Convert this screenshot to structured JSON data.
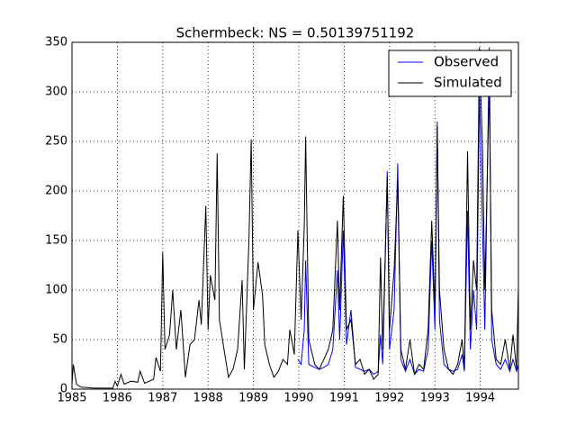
{
  "chart_data": {
    "type": "line",
    "title": "Schermbeck: NS = 0.50139751192",
    "x": [
      1985.0,
      1985.03,
      1985.1,
      1985.2,
      1985.5,
      1985.9,
      1985.95,
      1986.0,
      1986.08,
      1986.15,
      1986.3,
      1986.45,
      1986.5,
      1986.6,
      1986.8,
      1986.85,
      1986.95,
      1987.0,
      1987.05,
      1987.15,
      1987.22,
      1987.3,
      1987.4,
      1987.5,
      1987.6,
      1987.7,
      1987.8,
      1987.85,
      1987.95,
      1988.0,
      1988.05,
      1988.15,
      1988.2,
      1988.25,
      1988.35,
      1988.45,
      1988.55,
      1988.65,
      1988.75,
      1988.8,
      1988.9,
      1988.95,
      1989.0,
      1989.1,
      1989.2,
      1989.25,
      1989.35,
      1989.45,
      1989.55,
      1989.65,
      1989.75,
      1989.8,
      1989.9,
      1989.98,
      1990.05,
      1990.12,
      1990.15,
      1990.22,
      1990.35,
      1990.45,
      1990.55,
      1990.65,
      1990.75,
      1990.85,
      1990.9,
      1990.98,
      1991.05,
      1991.15,
      1991.25,
      1991.35,
      1991.45,
      1991.55,
      1991.65,
      1991.75,
      1991.8,
      1991.85,
      1991.95,
      1992.0,
      1992.1,
      1992.18,
      1992.25,
      1992.35,
      1992.45,
      1992.55,
      1992.65,
      1992.75,
      1992.85,
      1992.93,
      1993.0,
      1993.05,
      1993.1,
      1993.2,
      1993.3,
      1993.4,
      1993.5,
      1993.6,
      1993.65,
      1993.72,
      1993.78,
      1993.85,
      1993.92,
      1993.98,
      1994.05,
      1994.1,
      1994.2,
      1994.25,
      1994.35,
      1994.45,
      1994.55,
      1994.65,
      1994.72,
      1994.8,
      1994.84
    ],
    "series": [
      {
        "name": "Observed",
        "color": "#0000ff",
        "values": [
          null,
          null,
          null,
          null,
          null,
          null,
          null,
          null,
          null,
          null,
          null,
          null,
          null,
          null,
          null,
          null,
          null,
          null,
          null,
          null,
          null,
          null,
          null,
          null,
          null,
          null,
          null,
          null,
          null,
          null,
          null,
          null,
          null,
          null,
          null,
          null,
          null,
          null,
          null,
          null,
          null,
          null,
          null,
          null,
          null,
          null,
          null,
          null,
          null,
          null,
          null,
          null,
          null,
          30,
          25,
          60,
          130,
          25,
          22,
          20,
          22,
          25,
          40,
          120,
          50,
          160,
          45,
          80,
          22,
          20,
          18,
          20,
          15,
          18,
          55,
          25,
          220,
          40,
          80,
          228,
          30,
          18,
          30,
          15,
          20,
          18,
          40,
          150,
          60,
          270,
          70,
          25,
          20,
          18,
          20,
          35,
          18,
          180,
          40,
          100,
          60,
          300,
          160,
          60,
          345,
          50,
          25,
          20,
          30,
          18,
          30,
          18,
          25
        ]
      },
      {
        "name": "Simulated",
        "color": "#000000",
        "values": [
          5,
          25,
          5,
          2,
          1,
          1,
          8,
          3,
          15,
          5,
          8,
          7,
          18,
          6,
          10,
          32,
          18,
          138,
          40,
          55,
          100,
          40,
          80,
          12,
          45,
          50,
          90,
          65,
          185,
          60,
          115,
          90,
          238,
          70,
          40,
          12,
          20,
          40,
          110,
          20,
          150,
          252,
          80,
          128,
          95,
          45,
          25,
          12,
          18,
          30,
          25,
          60,
          35,
          160,
          70,
          165,
          255,
          50,
          25,
          20,
          30,
          40,
          60,
          170,
          80,
          195,
          60,
          70,
          25,
          30,
          15,
          20,
          10,
          15,
          133,
          40,
          215,
          60,
          120,
          210,
          40,
          20,
          50,
          15,
          25,
          20,
          60,
          170,
          80,
          265,
          100,
          40,
          20,
          15,
          25,
          50,
          20,
          240,
          60,
          130,
          100,
          345,
          240,
          100,
          310,
          80,
          30,
          25,
          50,
          20,
          55,
          20,
          105
        ]
      }
    ],
    "xlim": [
      1985,
      1994.84
    ],
    "xticks": [
      1985,
      1986,
      1987,
      1988,
      1989,
      1990,
      1991,
      1992,
      1993,
      1994
    ],
    "ylim": [
      0,
      350
    ],
    "yticks": [
      0,
      50,
      100,
      150,
      200,
      250,
      300,
      350
    ],
    "grid": true,
    "legend": "upper right"
  }
}
